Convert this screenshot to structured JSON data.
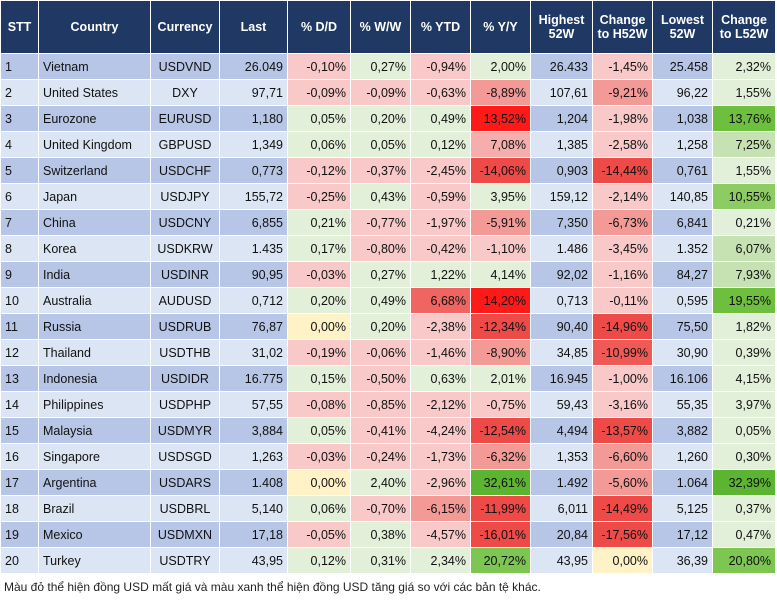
{
  "table": {
    "header": [
      "STT",
      "Country",
      "Currency",
      "Last",
      "% D/D",
      "% W/W",
      "% YTD",
      "% Y/Y",
      "Highest 52W",
      "Change to H52W",
      "Lowest 52W",
      "Change to L52W"
    ],
    "rows": [
      [
        "1",
        "Vietnam",
        "USDVND",
        "26.049",
        "-0,10%",
        "0,27%",
        "-0,94%",
        "2,00%",
        "26.433",
        "-1,45%",
        "25.458",
        "2,32%"
      ],
      [
        "2",
        "United States",
        "DXY",
        "97,71",
        "-0,09%",
        "-0,09%",
        "-0,63%",
        "-8,89%",
        "107,61",
        "-9,21%",
        "96,22",
        "1,55%"
      ],
      [
        "3",
        "Eurozone",
        "EURUSD",
        "1,180",
        "0,05%",
        "0,20%",
        "0,49%",
        "13,52%",
        "1,204",
        "-1,98%",
        "1,038",
        "13,76%"
      ],
      [
        "4",
        "United Kingdom",
        "GBPUSD",
        "1,349",
        "0,06%",
        "0,05%",
        "0,12%",
        "7,08%",
        "1,385",
        "-2,58%",
        "1,258",
        "7,25%"
      ],
      [
        "5",
        "Switzerland",
        "USDCHF",
        "0,773",
        "-0,12%",
        "-0,37%",
        "-2,45%",
        "-14,06%",
        "0,903",
        "-14,44%",
        "0,761",
        "1,55%"
      ],
      [
        "6",
        "Japan",
        "USDJPY",
        "155,72",
        "-0,25%",
        "0,43%",
        "-0,59%",
        "3,95%",
        "159,12",
        "-2,14%",
        "140,85",
        "10,55%"
      ],
      [
        "7",
        "China",
        "USDCNY",
        "6,855",
        "0,21%",
        "-0,77%",
        "-1,97%",
        "-5,91%",
        "7,350",
        "-6,73%",
        "6,841",
        "0,21%"
      ],
      [
        "8",
        "Korea",
        "USDKRW",
        "1.435",
        "0,17%",
        "-0,80%",
        "-0,42%",
        "-1,10%",
        "1.486",
        "-3,45%",
        "1.352",
        "6,07%"
      ],
      [
        "9",
        "India",
        "USDINR",
        "90,95",
        "-0,03%",
        "0,27%",
        "1,22%",
        "4,14%",
        "92,02",
        "-1,16%",
        "84,27",
        "7,93%"
      ],
      [
        "10",
        "Australia",
        "AUDUSD",
        "0,712",
        "0,20%",
        "0,49%",
        "6,68%",
        "14,20%",
        "0,713",
        "-0,11%",
        "0,595",
        "19,55%"
      ],
      [
        "11",
        "Russia",
        "USDRUB",
        "76,87",
        "0,00%",
        "0,20%",
        "-2,38%",
        "-12,34%",
        "90,40",
        "-14,96%",
        "75,50",
        "1,82%"
      ],
      [
        "12",
        "Thailand",
        "USDTHB",
        "31,02",
        "-0,19%",
        "-0,06%",
        "-1,46%",
        "-8,90%",
        "34,85",
        "-10,99%",
        "30,90",
        "0,39%"
      ],
      [
        "13",
        "Indonesia",
        "USDIDR",
        "16.775",
        "0,15%",
        "-0,50%",
        "0,63%",
        "2,01%",
        "16.945",
        "-1,00%",
        "16.106",
        "4,15%"
      ],
      [
        "14",
        "Philippines",
        "USDPHP",
        "57,55",
        "-0,08%",
        "-0,85%",
        "-2,12%",
        "-0,75%",
        "59,43",
        "-3,16%",
        "55,35",
        "3,97%"
      ],
      [
        "15",
        "Malaysia",
        "USDMYR",
        "3,884",
        "0,05%",
        "-0,41%",
        "-4,24%",
        "-12,54%",
        "4,494",
        "-13,57%",
        "3,882",
        "0,05%"
      ],
      [
        "16",
        "Singapore",
        "USDSGD",
        "1,263",
        "-0,03%",
        "-0,24%",
        "-1,73%",
        "-6,32%",
        "1,353",
        "-6,60%",
        "1,260",
        "0,30%"
      ],
      [
        "17",
        "Argentina",
        "USDARS",
        "1.408",
        "0,00%",
        "2,40%",
        "-2,96%",
        "32,61%",
        "1.492",
        "-5,60%",
        "1.064",
        "32,39%"
      ],
      [
        "18",
        "Brazil",
        "USDBRL",
        "5,140",
        "0,06%",
        "-0,70%",
        "-6,15%",
        "-11,99%",
        "6,011",
        "-14,49%",
        "5,125",
        "0,37%"
      ],
      [
        "19",
        "Mexico",
        "USDMXN",
        "17,18",
        "-0,05%",
        "0,38%",
        "-4,57%",
        "-16,01%",
        "20,84",
        "-17,56%",
        "17,12",
        "0,47%"
      ],
      [
        "20",
        "Turkey",
        "USDTRY",
        "43,95",
        "0,12%",
        "0,31%",
        "2,34%",
        "20,72%",
        "43,95",
        "0,00%",
        "36,39",
        "20,80%"
      ]
    ],
    "cell_colors": [
      [
        null,
        null,
        null,
        null,
        "#f8c9c8",
        "#e2efd9",
        "#f8c9c8",
        "#e2efd9",
        null,
        "#f8c9c8",
        null,
        "#e2efd9"
      ],
      [
        null,
        null,
        null,
        null,
        "#f8c9c8",
        "#f8c9c8",
        "#f8c9c8",
        "#f39a97",
        null,
        "#f39a97",
        null,
        "#e2efd9"
      ],
      [
        null,
        null,
        null,
        null,
        "#e2efd9",
        "#e2efd9",
        "#e2efd9",
        "#ff1a1a",
        null,
        "#f8c9c8",
        null,
        "#6fbf3f"
      ],
      [
        null,
        null,
        null,
        null,
        "#e2efd9",
        "#e2efd9",
        "#e2efd9",
        "#f6aeac",
        null,
        "#f8c9c8",
        null,
        "#c6e2b3"
      ],
      [
        null,
        null,
        null,
        null,
        "#f8c9c8",
        "#f8c9c8",
        "#f8c9c8",
        "#ee4b48",
        null,
        "#ee4b48",
        null,
        "#e2efd9"
      ],
      [
        null,
        null,
        null,
        null,
        "#f8c9c8",
        "#e2efd9",
        "#f8c9c8",
        "#e2efd9",
        null,
        "#f8c9c8",
        null,
        "#8ccc62"
      ],
      [
        null,
        null,
        null,
        null,
        "#e2efd9",
        "#f8c9c8",
        "#f8c9c8",
        "#f39a97",
        null,
        "#f39a97",
        null,
        "#e2efd9"
      ],
      [
        null,
        null,
        null,
        null,
        "#e2efd9",
        "#f8c9c8",
        "#f8c9c8",
        "#f8c9c8",
        null,
        "#f8c9c8",
        null,
        "#c6e2b3"
      ],
      [
        null,
        null,
        null,
        null,
        "#f8c9c8",
        "#e2efd9",
        "#e2efd9",
        "#e2efd9",
        null,
        "#f8c9c8",
        null,
        "#c6e2b3"
      ],
      [
        null,
        null,
        null,
        null,
        "#e2efd9",
        "#e2efd9",
        "#f06562",
        "#ff1a1a",
        null,
        "#f8c9c8",
        null,
        "#6fbf3f"
      ],
      [
        null,
        null,
        null,
        null,
        "#fff2c6",
        "#e2efd9",
        "#f8c9c8",
        "#ee4b48",
        null,
        "#ee4b48",
        null,
        "#e2efd9"
      ],
      [
        null,
        null,
        null,
        null,
        "#f8c9c8",
        "#f8c9c8",
        "#f8c9c8",
        "#f39a97",
        null,
        "#ef5a57",
        null,
        "#e2efd9"
      ],
      [
        null,
        null,
        null,
        null,
        "#e2efd9",
        "#f8c9c8",
        "#e2efd9",
        "#e2efd9",
        null,
        "#f8c9c8",
        null,
        "#e2efd9"
      ],
      [
        null,
        null,
        null,
        null,
        "#f8c9c8",
        "#f8c9c8",
        "#f8c9c8",
        "#f8c9c8",
        null,
        "#f8c9c8",
        null,
        "#e2efd9"
      ],
      [
        null,
        null,
        null,
        null,
        "#e2efd9",
        "#f8c9c8",
        "#f8c9c8",
        "#ee4b48",
        null,
        "#ee4b48",
        null,
        "#e2efd9"
      ],
      [
        null,
        null,
        null,
        null,
        "#f8c9c8",
        "#f8c9c8",
        "#f8c9c8",
        "#f39a97",
        null,
        "#f39a97",
        null,
        "#e2efd9"
      ],
      [
        null,
        null,
        null,
        null,
        "#fff2c6",
        "#e2efd9",
        "#f8c9c8",
        "#5cb530",
        null,
        "#f39a97",
        null,
        "#5cb530"
      ],
      [
        null,
        null,
        null,
        null,
        "#e2efd9",
        "#f8c9c8",
        "#f39a97",
        "#ee4b48",
        null,
        "#ee4b48",
        null,
        "#e2efd9"
      ],
      [
        null,
        null,
        null,
        null,
        "#f8c9c8",
        "#e2efd9",
        "#f8c9c8",
        "#ee4b48",
        null,
        "#ee4b48",
        null,
        "#e2efd9"
      ],
      [
        null,
        null,
        null,
        null,
        "#e2efd9",
        "#e2efd9",
        "#e2efd9",
        "#7cc651",
        null,
        "#fff2c6",
        null,
        "#7cc651"
      ]
    ]
  },
  "footnote": "Màu đỏ thể hiện đồng USD mất giá và màu xanh thể hiện đồng USD tăng giá so với các bản tệ khác."
}
